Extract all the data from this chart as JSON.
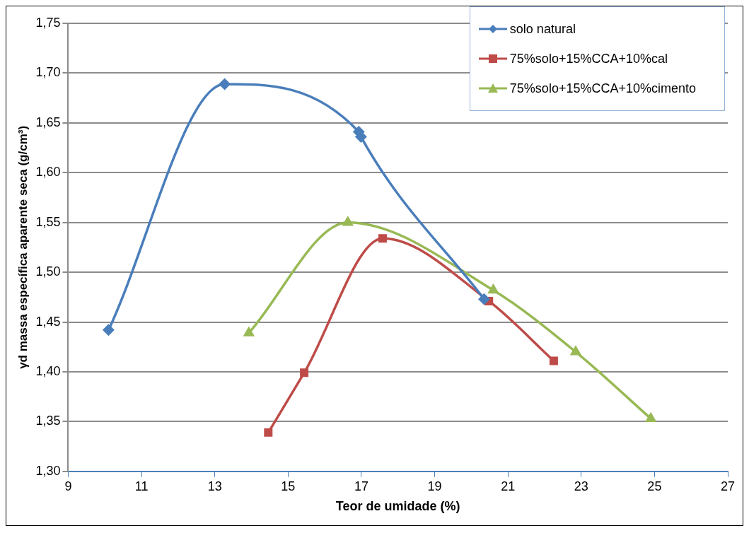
{
  "chart_data": {
    "type": "line",
    "xlabel": "Teor de umidade (%)",
    "ylabel": "γd massa específica aparente seca (g/cm³)",
    "xlim": [
      9,
      27
    ],
    "xticks": [
      9,
      11,
      13,
      15,
      17,
      19,
      21,
      23,
      25,
      27
    ],
    "ylim": [
      1.3,
      1.75
    ],
    "yticks": [
      {
        "value": 1.3,
        "label": "1,30"
      },
      {
        "value": 1.35,
        "label": "1,35"
      },
      {
        "value": 1.4,
        "label": "1,40"
      },
      {
        "value": 1.45,
        "label": "1,45"
      },
      {
        "value": 1.5,
        "label": "1,50"
      },
      {
        "value": 1.55,
        "label": "1,55"
      },
      {
        "value": 1.6,
        "label": "1,60"
      },
      {
        "value": 1.65,
        "label": "1,65"
      },
      {
        "value": 1.7,
        "label": "1,70"
      },
      {
        "value": 1.75,
        "label": "1,75"
      }
    ],
    "grid": "y",
    "legend": "top right",
    "line_style": "solid",
    "series": [
      {
        "name": "solo natural",
        "color": "#4a7ebb",
        "marker": "diamond",
        "x": [
          10.1,
          13.27,
          16.93,
          16.99,
          20.35
        ],
        "values": [
          1.442,
          1.689,
          1.641,
          1.636,
          1.473
        ]
      },
      {
        "name": "75%solo+15%CCA+10%cal",
        "color": "#be4b48",
        "marker": "square",
        "x": [
          14.46,
          15.44,
          17.58,
          20.48,
          22.25
        ],
        "values": [
          1.339,
          1.399,
          1.534,
          1.471,
          1.411
        ]
      },
      {
        "name": "75%solo+15%CCA+10%cimento",
        "color": "#98b954",
        "marker": "triangle",
        "x": [
          13.93,
          16.63,
          20.6,
          22.85,
          24.9
        ],
        "values": [
          1.439,
          1.55,
          1.482,
          1.42,
          1.353
        ]
      }
    ]
  }
}
